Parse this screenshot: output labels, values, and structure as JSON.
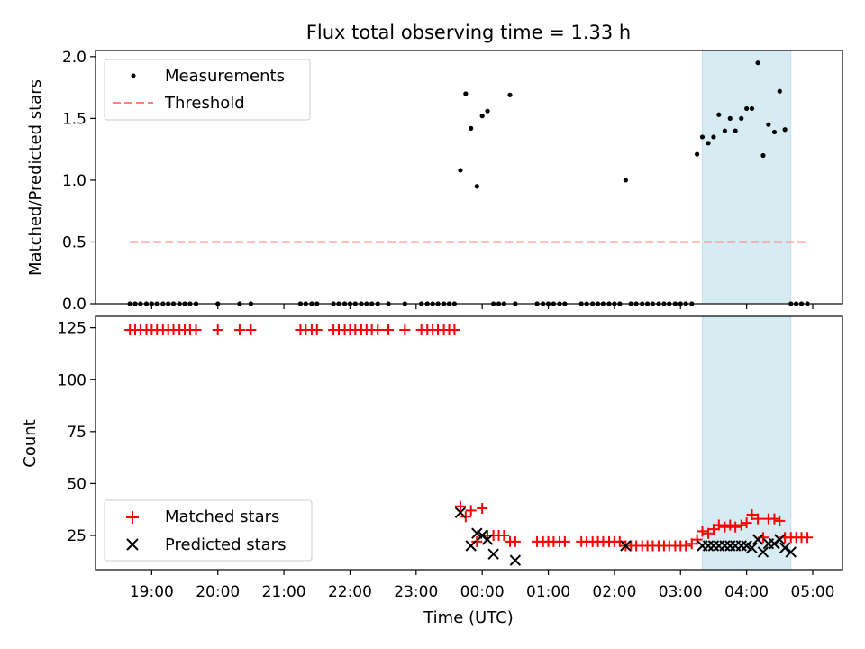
{
  "title": "Flux total observing time = 1.33 h",
  "colors": {
    "measurement": "#000000",
    "threshold": "#ff8080",
    "matched": "#ff0000",
    "predicted": "#000000",
    "highlight": "#add8e6"
  },
  "chart_data": [
    {
      "type": "scatter",
      "panel": "top",
      "title": "Flux total observing time = 1.33 h",
      "xlabel": "",
      "ylabel": "Matched/Predicted stars",
      "xlim": [
        18.15,
        5.45
      ],
      "ylim": [
        0,
        2.05
      ],
      "x_unit": "hours since 18:00 UTC",
      "highlight_span": [
        3.33,
        4.67
      ],
      "yticks": [
        0.0,
        0.5,
        1.0,
        1.5,
        2.0
      ],
      "ytick_labels": [
        "0.0",
        "0.5",
        "1.0",
        "1.5",
        "2.0"
      ],
      "threshold": {
        "name": "Threshold",
        "value": 0.5,
        "x_range": [
          18.67,
          4.9
        ]
      },
      "legend": [
        "Measurements",
        "Threshold"
      ],
      "legend_position": "top-left",
      "series": [
        {
          "name": "Measurements",
          "x": [
            18.67,
            18.75,
            18.83,
            18.92,
            19.0,
            19.08,
            19.17,
            19.25,
            19.33,
            19.42,
            19.5,
            19.58,
            19.67,
            20.0,
            20.33,
            20.5,
            21.25,
            21.33,
            21.42,
            21.5,
            21.75,
            21.83,
            21.92,
            22.0,
            22.08,
            22.17,
            22.25,
            22.33,
            22.42,
            22.58,
            22.83,
            23.08,
            23.17,
            23.25,
            23.33,
            23.42,
            23.5,
            23.58,
            23.67,
            23.75,
            23.83,
            23.92,
            24.0,
            24.08,
            24.17,
            24.25,
            24.33,
            24.42,
            24.5,
            24.83,
            24.92,
            25.0,
            25.08,
            25.17,
            25.25,
            25.5,
            25.58,
            25.67,
            25.75,
            25.83,
            25.92,
            26.0,
            26.08,
            26.17,
            26.25,
            26.33,
            26.42,
            26.5,
            26.58,
            26.67,
            26.75,
            26.83,
            26.92,
            27.0,
            27.08,
            27.17,
            27.25,
            27.33,
            27.42,
            27.5,
            27.58,
            27.67,
            27.75,
            27.83,
            27.92,
            28.0,
            28.08,
            28.17,
            28.25,
            28.33,
            28.42,
            28.5,
            28.58,
            28.67,
            28.75,
            28.83,
            28.92
          ],
          "y": [
            0,
            0,
            0,
            0,
            0,
            0,
            0,
            0,
            0,
            0,
            0,
            0,
            0,
            0,
            0,
            0,
            0,
            0,
            0,
            0,
            0,
            0,
            0,
            0,
            0,
            0,
            0,
            0,
            0,
            0,
            0,
            0,
            0,
            0,
            0,
            0,
            0,
            0,
            1.08,
            1.7,
            1.42,
            0.95,
            1.52,
            1.56,
            0,
            0,
            0,
            1.69,
            0,
            0,
            0,
            0,
            0,
            0,
            0,
            0,
            0,
            0,
            0,
            0,
            0,
            0,
            0,
            1.0,
            0,
            0,
            0,
            0,
            0,
            0,
            0,
            0,
            0,
            0,
            0,
            0,
            1.21,
            1.35,
            1.3,
            1.35,
            1.53,
            1.4,
            1.5,
            1.4,
            1.5,
            1.58,
            1.58,
            1.95,
            1.2,
            1.45,
            1.39,
            1.72,
            1.41,
            0,
            0,
            0,
            0
          ]
        }
      ]
    },
    {
      "type": "scatter",
      "panel": "bottom",
      "title": "",
      "xlabel": "Time (UTC)",
      "ylabel": "Count",
      "xlim": [
        18.15,
        5.45
      ],
      "ylim": [
        8.5,
        130.5
      ],
      "x_unit": "hours since 18:00 UTC",
      "highlight_span": [
        3.33,
        4.67
      ],
      "yticks": [
        25,
        50,
        75,
        100,
        125
      ],
      "ytick_labels": [
        "25",
        "50",
        "75",
        "100",
        "125"
      ],
      "xticks": [
        19,
        20,
        21,
        22,
        23,
        0,
        1,
        2,
        3,
        4,
        5
      ],
      "xtick_labels": [
        "19:00",
        "20:00",
        "21:00",
        "22:00",
        "23:00",
        "00:00",
        "01:00",
        "02:00",
        "03:00",
        "04:00",
        "05:00"
      ],
      "legend": [
        "Matched stars",
        "Predicted stars"
      ],
      "legend_position": "bottom-left",
      "series": [
        {
          "name": "Matched stars",
          "x": [
            18.67,
            18.75,
            18.83,
            18.92,
            19.0,
            19.08,
            19.17,
            19.25,
            19.33,
            19.42,
            19.5,
            19.58,
            19.67,
            20.0,
            20.33,
            20.5,
            21.25,
            21.33,
            21.42,
            21.5,
            21.75,
            21.83,
            21.92,
            22.0,
            22.08,
            22.17,
            22.25,
            22.33,
            22.42,
            22.58,
            22.83,
            23.08,
            23.17,
            23.25,
            23.33,
            23.42,
            23.5,
            23.58,
            23.67,
            23.75,
            23.83,
            23.92,
            24.0,
            24.08,
            24.17,
            24.25,
            24.33,
            24.42,
            24.5,
            24.83,
            24.92,
            25.0,
            25.08,
            25.17,
            25.25,
            25.5,
            25.58,
            25.67,
            25.75,
            25.83,
            25.92,
            26.0,
            26.08,
            26.17,
            26.25,
            26.33,
            26.42,
            26.5,
            26.58,
            26.67,
            26.75,
            26.83,
            26.92,
            27.0,
            27.08,
            27.17,
            27.25,
            27.33,
            27.42,
            27.5,
            27.58,
            27.67,
            27.75,
            27.83,
            27.92,
            28.0,
            28.08,
            28.17,
            28.25,
            28.33,
            28.42,
            28.5,
            28.58,
            28.67,
            28.75,
            28.83,
            28.92
          ],
          "y": [
            124,
            124,
            124,
            124,
            124,
            124,
            124,
            124,
            124,
            124,
            124,
            124,
            124,
            124,
            124,
            124,
            124,
            124,
            124,
            124,
            124,
            124,
            124,
            124,
            124,
            124,
            124,
            124,
            124,
            124,
            124,
            124,
            124,
            124,
            124,
            124,
            124,
            124,
            39,
            34,
            37,
            22,
            38,
            25,
            25,
            25,
            25,
            22,
            22,
            22,
            22,
            22,
            22,
            22,
            22,
            22,
            22,
            22,
            22,
            22,
            22,
            22,
            22,
            20,
            20,
            20,
            20,
            20,
            20,
            20,
            20,
            20,
            20,
            20,
            20,
            21,
            23,
            27,
            26,
            28,
            30,
            29,
            30,
            29,
            30,
            31,
            35,
            33,
            24,
            33,
            33,
            32,
            24,
            24,
            24,
            24,
            24
          ]
        },
        {
          "name": "Predicted stars",
          "x": [
            23.67,
            23.83,
            23.92,
            24.0,
            24.08,
            24.17,
            24.5,
            26.17,
            27.33,
            27.42,
            27.5,
            27.58,
            27.67,
            27.75,
            27.83,
            27.92,
            28.0,
            28.08,
            28.17,
            28.25,
            28.33,
            28.42,
            28.5,
            28.58,
            28.67
          ],
          "y": [
            36,
            20,
            26,
            25,
            23,
            16,
            13,
            20,
            20,
            20,
            20,
            20,
            20,
            20,
            20,
            20,
            20,
            19,
            23,
            17,
            21,
            21,
            23,
            19,
            17
          ]
        }
      ]
    }
  ]
}
